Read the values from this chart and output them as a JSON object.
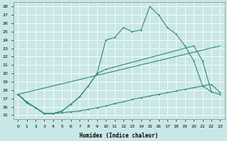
{
  "background_color": "#c8e8e8",
  "grid_color": "#ffffff",
  "line_color": "#2e8b6e",
  "xlabel": "Humidex (Indice chaleur)",
  "xlim": [
    -0.5,
    23.5
  ],
  "ylim": [
    14.5,
    28.5
  ],
  "yticks": [
    15,
    16,
    17,
    18,
    19,
    20,
    21,
    22,
    23,
    24,
    25,
    26,
    27,
    28
  ],
  "xticks": [
    0,
    1,
    2,
    3,
    4,
    5,
    6,
    7,
    8,
    9,
    10,
    11,
    12,
    13,
    14,
    15,
    16,
    17,
    18,
    19,
    20,
    21,
    22,
    23
  ],
  "curve1_x": [
    0,
    1,
    2,
    3,
    4,
    5,
    6,
    7,
    8,
    9,
    10,
    11,
    12,
    13,
    14,
    15,
    16,
    17,
    18,
    19,
    20,
    21,
    22
  ],
  "curve1_y": [
    17.5,
    16.5,
    15.9,
    15.2,
    15.2,
    15.5,
    16.3,
    17.2,
    18.5,
    20.0,
    24.0,
    24.3,
    25.5,
    25.0,
    25.2,
    28.0,
    27.0,
    25.5,
    24.7,
    23.3,
    21.5,
    18.5,
    17.8
  ],
  "curve2_x": [
    0,
    1,
    2,
    3,
    4,
    5,
    6,
    7,
    8,
    9,
    10,
    20,
    21,
    22,
    23
  ],
  "curve2_y": [
    17.5,
    16.5,
    15.9,
    15.2,
    15.2,
    15.5,
    16.3,
    17.2,
    18.5,
    20.0,
    20.5,
    23.3,
    21.5,
    17.8,
    17.5
  ],
  "curve3_x": [
    0,
    23
  ],
  "curve3_y": [
    17.5,
    23.3
  ],
  "curve4_x": [
    0,
    1,
    2,
    3,
    4,
    5,
    6,
    7,
    8,
    9,
    10,
    11,
    12,
    13,
    14,
    15,
    16,
    17,
    18,
    19,
    20,
    21,
    22,
    23
  ],
  "curve4_y": [
    17.5,
    16.6,
    15.9,
    15.2,
    15.2,
    15.3,
    15.4,
    15.5,
    15.7,
    15.9,
    16.1,
    16.4,
    16.6,
    16.9,
    17.1,
    17.3,
    17.5,
    17.7,
    17.9,
    18.1,
    18.3,
    18.5,
    18.7,
    17.7
  ]
}
